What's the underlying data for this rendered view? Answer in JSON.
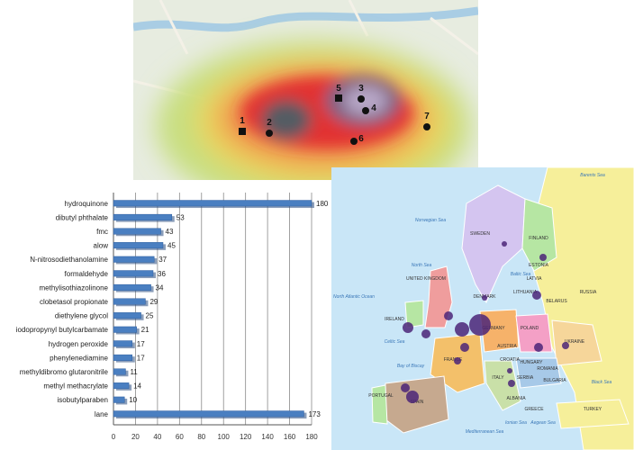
{
  "heatmap": {
    "site_labels": [
      "1",
      "2",
      "3",
      "4",
      "5",
      "6",
      "7"
    ],
    "marker_shapes": [
      "square",
      "circle",
      "circle",
      "circle",
      "square",
      "circle",
      "circle"
    ]
  },
  "europe_map": {
    "country_labels": [
      "SWEDEN",
      "FINLAND",
      "ESTONIA",
      "LATVIA",
      "LITHUANIA",
      "BELARUS",
      "RUSSIA",
      "POLAND",
      "UKRAINE",
      "GERMANY",
      "DENMARK",
      "UNITED KINGDOM",
      "IRELAND",
      "FRANCE",
      "SPAIN",
      "PORTUGAL",
      "ITALY",
      "AUSTRIA",
      "HUNGARY",
      "ROMANIA",
      "BULGARIA",
      "TURKEY",
      "GREECE",
      "SERBIA",
      "CROATIA",
      "ALBANIA"
    ],
    "sea_labels": [
      "Norwegian Sea",
      "Barents Sea",
      "North Sea",
      "Baltic Sea",
      "Black Sea",
      "Mediterranean Sea",
      "North Atlantic Ocean",
      "Celtic Sea",
      "Bay of Biscay",
      "Ionian Sea",
      "Aegean Sea"
    ],
    "colors": {
      "sea": "#c9e6f7",
      "bubble": "#4b2478"
    }
  },
  "chart_data": {
    "type": "bar",
    "orientation": "horizontal",
    "categories": [
      "hydroquinone",
      "dibutyl phthalate",
      "fmc",
      "alow",
      "N-nitrosodiethanolamine",
      "formaldehyde",
      "methylisothiazolinone",
      "clobetasol propionate",
      "diethylene glycol",
      "iodopropynyl butylcarbamate",
      "hydrogen peroxide",
      "phenylenediamine",
      "methyldibromo glutaronitrile",
      "methyl methacrylate",
      "isobutylparaben",
      "lane"
    ],
    "values": [
      180,
      53,
      43,
      45,
      37,
      36,
      34,
      29,
      25,
      21,
      17,
      17,
      11,
      14,
      10,
      173
    ],
    "xlim": [
      0,
      180
    ],
    "xticks": [
      0,
      20,
      40,
      60,
      80,
      100,
      120,
      140,
      160,
      180
    ],
    "grid": true,
    "bar_color": "#4a7fc1",
    "title": "",
    "xlabel": "",
    "ylabel": ""
  }
}
